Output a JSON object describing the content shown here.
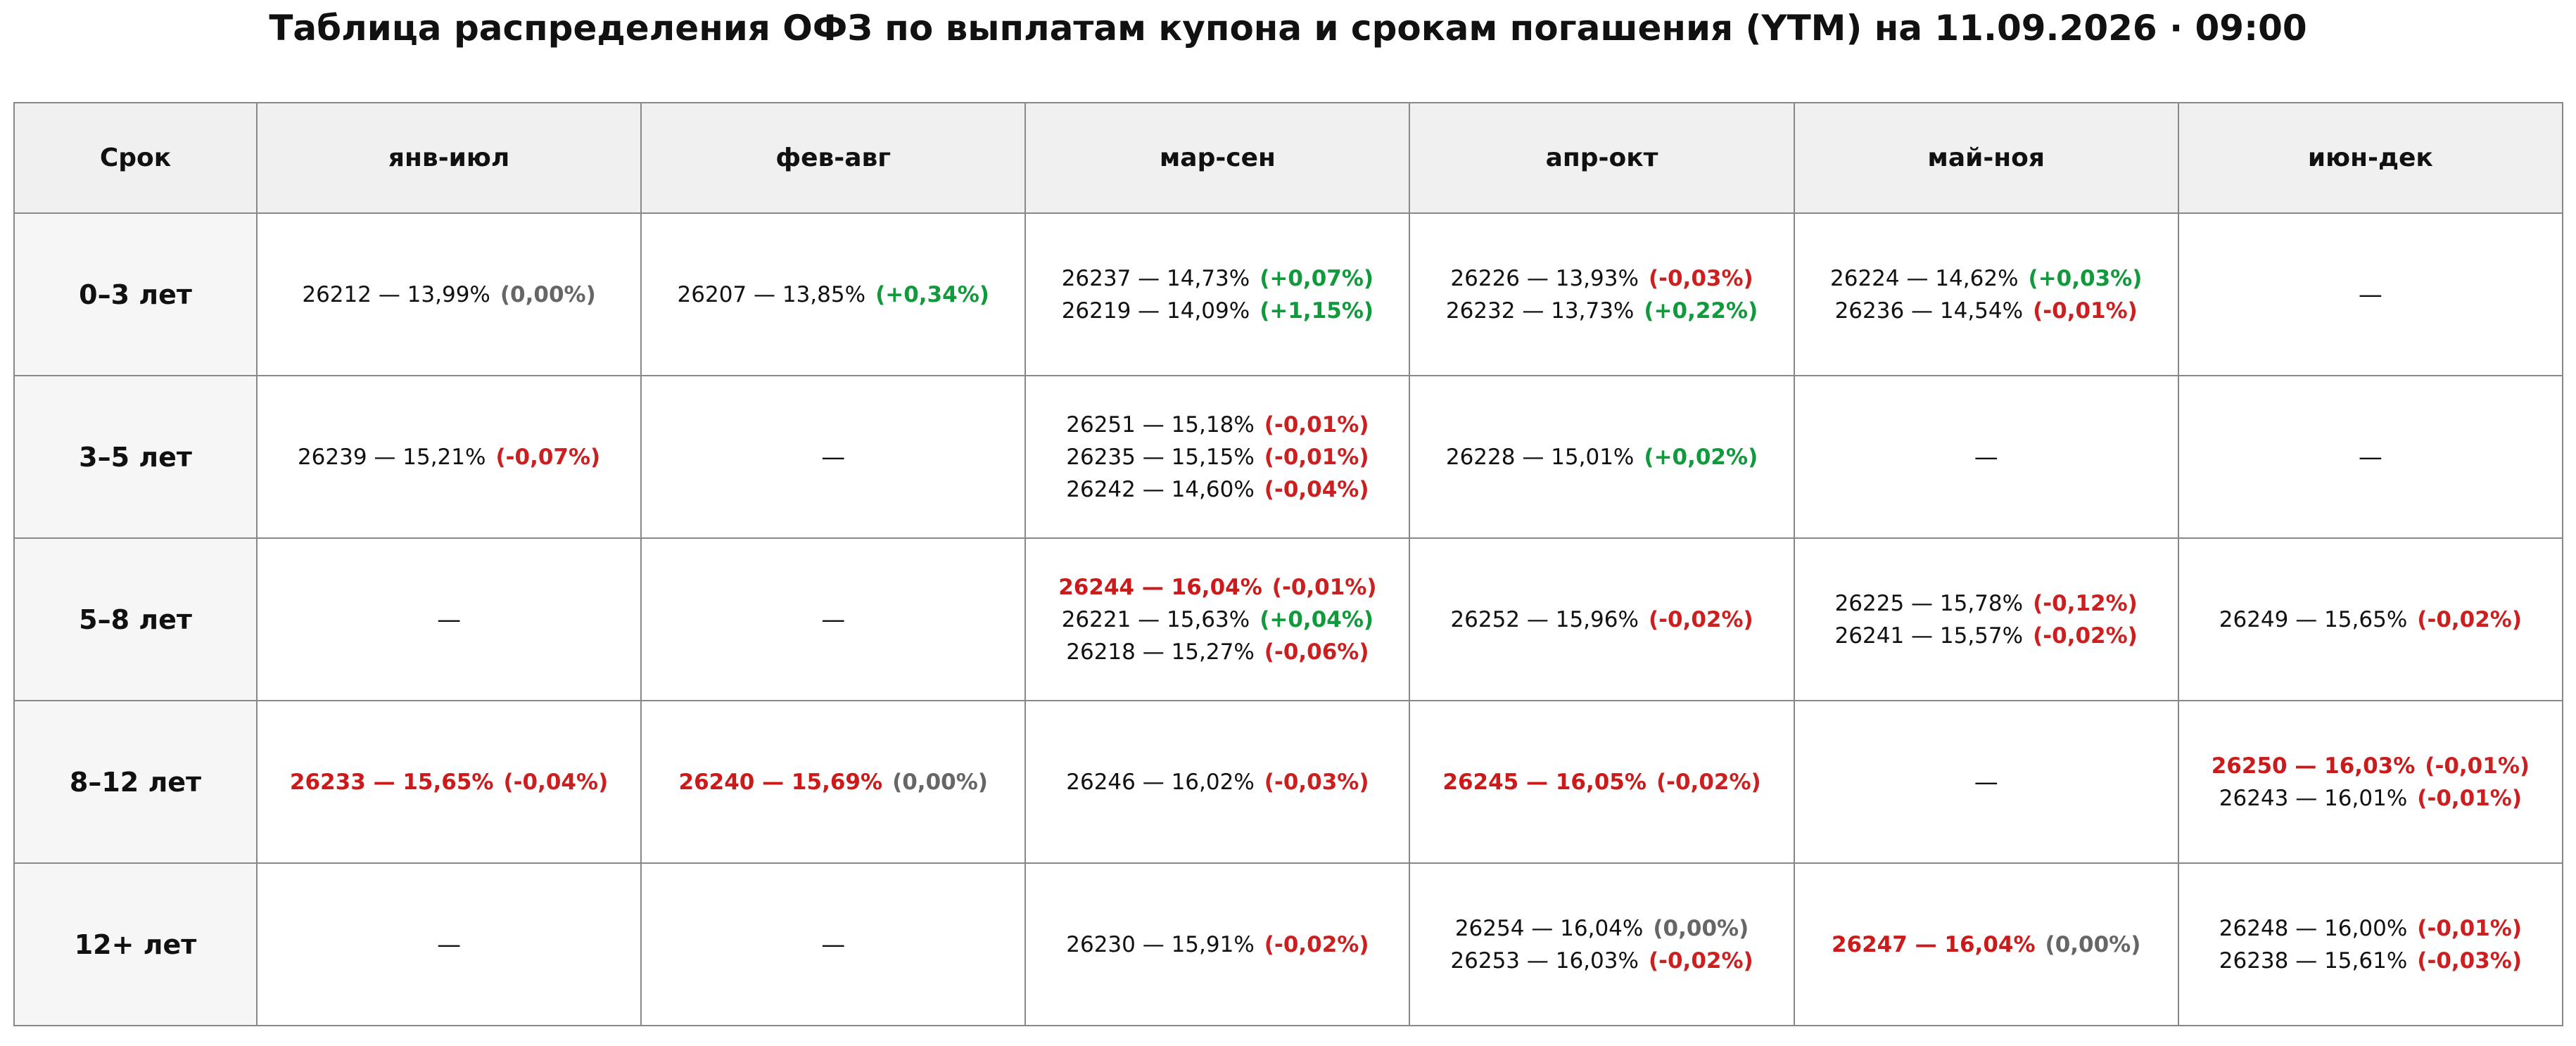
{
  "title": "Таблица распределения ОФЗ по выплатам купона и срокам погашения (YTM) на 11.09.2026 · 09:00",
  "table": {
    "header": [
      "Срок",
      "янв-июл",
      "фев-авг",
      "мар-сен",
      "апр-окт",
      "май-ноя",
      "июн-дек"
    ],
    "rows": [
      {
        "label": "0–3 лет",
        "cells": [
          [
            {
              "text": "26212 — 13,99%",
              "change": "(0,00%)"
            }
          ],
          [
            {
              "text": "26207 — 13,85%",
              "change": "(+0,34%)"
            }
          ],
          [
            {
              "text": "26237 — 14,73%",
              "change": "(+0,07%)"
            },
            {
              "text": "26219 — 14,09%",
              "change": "(+1,15%)"
            }
          ],
          [
            {
              "text": "26226 — 13,93%",
              "change": "(-0,03%)"
            },
            {
              "text": "26232 — 13,73%",
              "change": "(+0,22%)"
            }
          ],
          [
            {
              "text": "26224 — 14,62%",
              "change": "(+0,03%)"
            },
            {
              "text": "26236 — 14,54%",
              "change": "(-0,01%)"
            }
          ],
          "—"
        ]
      },
      {
        "label": "3–5 лет",
        "cells": [
          [
            {
              "text": "26239 — 15,21%",
              "change": "(-0,07%)"
            }
          ],
          "—",
          [
            {
              "text": "26251 — 15,18%",
              "change": "(-0,01%)"
            },
            {
              "text": "26235 — 15,15%",
              "change": "(-0,01%)"
            },
            {
              "text": "26242 — 14,60%",
              "change": "(-0,04%)"
            }
          ],
          [
            {
              "text": "26228 — 15,01%",
              "change": "(+0,02%)"
            }
          ],
          "—",
          "—"
        ]
      },
      {
        "label": "5–8 лет",
        "cells": [
          "—",
          "—",
          [
            {
              "text": "26244 — 16,04%",
              "change": "(-0,01%)",
              "highlight": true
            },
            {
              "text": "26221 — 15,63%",
              "change": "(+0,04%)"
            },
            {
              "text": "26218 — 15,27%",
              "change": "(-0,06%)"
            }
          ],
          [
            {
              "text": "26252 — 15,96%",
              "change": "(-0,02%)"
            }
          ],
          [
            {
              "text": "26225 — 15,78%",
              "change": "(-0,12%)"
            },
            {
              "text": "26241 — 15,57%",
              "change": "(-0,02%)"
            }
          ],
          [
            {
              "text": "26249 — 15,65%",
              "change": "(-0,02%)"
            }
          ]
        ]
      },
      {
        "label": "8–12 лет",
        "cells": [
          [
            {
              "text": "26233 — 15,65%",
              "change": "(-0,04%)",
              "highlight": true
            }
          ],
          [
            {
              "text": "26240 — 15,69%",
              "change": "(0,00%)",
              "highlight": true
            }
          ],
          [
            {
              "text": "26246 — 16,02%",
              "change": "(-0,03%)"
            }
          ],
          [
            {
              "text": "26245 — 16,05%",
              "change": "(-0,02%)",
              "highlight": true
            }
          ],
          "—",
          [
            {
              "text": "26250 — 16,03%",
              "change": "(-0,01%)",
              "highlight": true
            },
            {
              "text": "26243 — 16,01%",
              "change": "(-0,01%)"
            }
          ]
        ]
      },
      {
        "label": "12+ лет",
        "cells": [
          "—",
          "—",
          [
            {
              "text": "26230 — 15,91%",
              "change": "(-0,02%)"
            }
          ],
          [
            {
              "text": "26254 — 16,04%",
              "change": "(0,00%)"
            },
            {
              "text": "26253 — 16,03%",
              "change": "(-0,02%)"
            }
          ],
          [
            {
              "text": "26247 — 16,04%",
              "change": "(0,00%)",
              "highlight": true
            }
          ],
          [
            {
              "text": "26248 — 16,00%",
              "change": "(-0,01%)"
            },
            {
              "text": "26238 — 15,61%",
              "change": "(-0,03%)"
            }
          ]
        ]
      }
    ]
  }
}
